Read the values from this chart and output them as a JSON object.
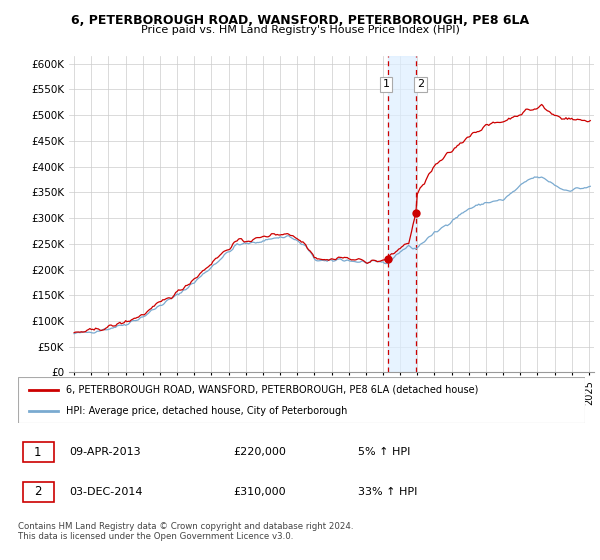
{
  "title": "6, PETERBOROUGH ROAD, WANSFORD, PETERBOROUGH, PE8 6LA",
  "subtitle": "Price paid vs. HM Land Registry's House Price Index (HPI)",
  "yticks": [
    0,
    50000,
    100000,
    150000,
    200000,
    250000,
    300000,
    350000,
    400000,
    450000,
    500000,
    550000,
    600000
  ],
  "ytick_labels": [
    "£0",
    "£50K",
    "£100K",
    "£150K",
    "£200K",
    "£250K",
    "£300K",
    "£350K",
    "£400K",
    "£450K",
    "£500K",
    "£550K",
    "£600K"
  ],
  "xlim_start": 1994.7,
  "xlim_end": 2025.3,
  "ylim_min": 0,
  "ylim_max": 615000,
  "sale1_date": 2013.27,
  "sale1_price": 220000,
  "sale2_date": 2014.92,
  "sale2_price": 310000,
  "shade_x1": 2013.27,
  "shade_x2": 2014.92,
  "sale_color": "#cc0000",
  "hpi_color": "#7aaad0",
  "legend_label1": "6, PETERBOROUGH ROAD, WANSFORD, PETERBOROUGH, PE8 6LA (detached house)",
  "legend_label2": "HPI: Average price, detached house, City of Peterborough",
  "table_row1": [
    "1",
    "09-APR-2013",
    "£220,000",
    "5% ↑ HPI"
  ],
  "table_row2": [
    "2",
    "03-DEC-2014",
    "£310,000",
    "33% ↑ HPI"
  ],
  "footer": "Contains HM Land Registry data © Crown copyright and database right 2024.\nThis data is licensed under the Open Government Licence v3.0."
}
